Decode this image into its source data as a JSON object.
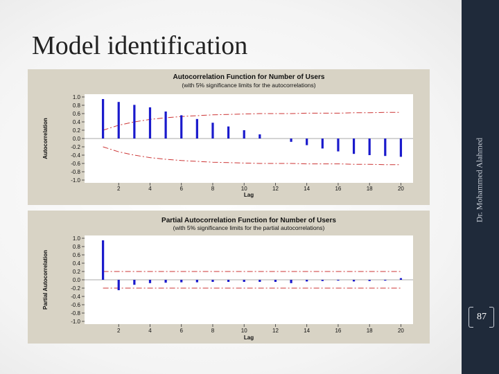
{
  "slide": {
    "title": "Model identification",
    "author": "Dr. Mohammed Alahmed",
    "page_number": "87"
  },
  "chart_data": [
    {
      "type": "bar",
      "title": "Autocorrelation Function for Number of Users",
      "subtitle": "(with 5% significance limits for the autocorrelations)",
      "xlabel": "Lag",
      "ylabel": "Autocorrelation",
      "ylim": [
        -1.0,
        1.0
      ],
      "yticks": [
        "1.0",
        "0.8",
        "0.6",
        "0.4",
        "0.2",
        "0.0",
        "-0.2",
        "-0.4",
        "-0.6",
        "-0.8",
        "-1.0"
      ],
      "xticks": [
        "2",
        "4",
        "6",
        "8",
        "10",
        "12",
        "14",
        "16",
        "18",
        "20"
      ],
      "x": [
        1,
        2,
        3,
        4,
        5,
        6,
        7,
        8,
        9,
        10,
        11,
        12,
        13,
        14,
        15,
        16,
        17,
        18,
        19,
        20
      ],
      "values": [
        0.95,
        0.88,
        0.81,
        0.75,
        0.65,
        0.56,
        0.47,
        0.38,
        0.29,
        0.2,
        0.1,
        0.0,
        -0.08,
        -0.16,
        -0.24,
        -0.31,
        -0.37,
        -0.4,
        -0.42,
        -0.44
      ],
      "significance_limits": [
        0.2,
        0.32,
        0.4,
        0.46,
        0.5,
        0.53,
        0.55,
        0.57,
        0.58,
        0.59,
        0.6,
        0.6,
        0.6,
        0.61,
        0.61,
        0.61,
        0.62,
        0.62,
        0.63,
        0.63
      ],
      "colors": {
        "bars": "#1a1acc",
        "limits": "#cc3333"
      }
    },
    {
      "type": "bar",
      "title": "Partial Autocorrelation Function for Number of Users",
      "subtitle": "(with 5% significance limits for the partial autocorrelations)",
      "xlabel": "Lag",
      "ylabel": "Partial Autocorrelation",
      "ylim": [
        -1.0,
        1.0
      ],
      "yticks": [
        "1.0",
        "0.8",
        "0.6",
        "0.4",
        "0.2",
        "0.0",
        "-0.2",
        "-0.4",
        "-0.6",
        "-0.8",
        "-1.0"
      ],
      "xticks": [
        "2",
        "4",
        "6",
        "8",
        "10",
        "12",
        "14",
        "16",
        "18",
        "20"
      ],
      "x": [
        1,
        2,
        3,
        4,
        5,
        6,
        7,
        8,
        9,
        10,
        11,
        12,
        13,
        14,
        15,
        16,
        17,
        18,
        19,
        20
      ],
      "values": [
        0.95,
        -0.25,
        -0.12,
        -0.08,
        -0.07,
        -0.06,
        -0.06,
        -0.05,
        -0.05,
        -0.05,
        -0.05,
        -0.05,
        -0.08,
        -0.04,
        -0.03,
        -0.02,
        -0.04,
        -0.03,
        -0.02,
        0.04
      ],
      "significance_limits": [
        0.2,
        0.2,
        0.2,
        0.2,
        0.2,
        0.2,
        0.2,
        0.2,
        0.2,
        0.2,
        0.2,
        0.2,
        0.2,
        0.2,
        0.2,
        0.2,
        0.2,
        0.2,
        0.2,
        0.2
      ],
      "colors": {
        "bars": "#1a1acc",
        "limits": "#cc3333"
      }
    }
  ]
}
